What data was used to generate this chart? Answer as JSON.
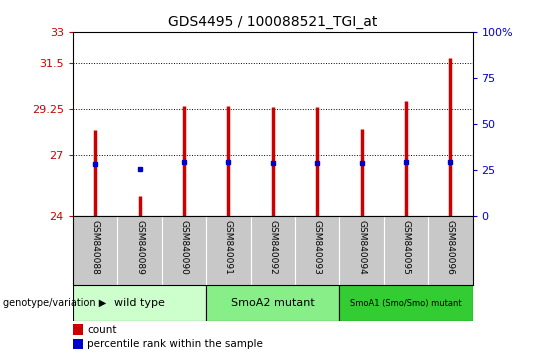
{
  "title": "GDS4495 / 100088521_TGI_at",
  "samples": [
    "GSM840088",
    "GSM840089",
    "GSM840090",
    "GSM840091",
    "GSM840092",
    "GSM840093",
    "GSM840094",
    "GSM840095",
    "GSM840096"
  ],
  "counts": [
    28.2,
    25.0,
    29.4,
    29.4,
    29.35,
    29.35,
    28.25,
    29.6,
    31.7
  ],
  "percentile_ranks": [
    26.55,
    26.3,
    26.65,
    26.65,
    26.6,
    26.6,
    26.6,
    26.65,
    26.65
  ],
  "y_min": 24,
  "y_max": 33,
  "y_ticks": [
    24,
    27,
    29.25,
    31.5,
    33
  ],
  "y_tick_labels": [
    "24",
    "27",
    "29.25",
    "31.5",
    "33"
  ],
  "right_y_ticks": [
    0,
    25,
    50,
    75,
    100
  ],
  "right_y_tick_labels": [
    "0",
    "25",
    "50",
    "75",
    "100%"
  ],
  "bar_color": "#CC0000",
  "dot_color": "#0000CC",
  "bar_base": 24,
  "groups": [
    {
      "label": "wild type",
      "start": 0,
      "end": 3,
      "color": "#CCFFCC"
    },
    {
      "label": "SmoA2 mutant",
      "start": 3,
      "end": 6,
      "color": "#88EE88"
    },
    {
      "label": "SmoA1 (Smo/Smo) mutant",
      "start": 6,
      "end": 9,
      "color": "#33CC33"
    }
  ],
  "ylabel_left_color": "#CC0000",
  "ylabel_right_color": "#0000CC",
  "legend_count_color": "#CC0000",
  "legend_pct_color": "#0000CC",
  "genotype_label": "genotype/variation",
  "background_color": "#FFFFFF",
  "plot_bg_color": "#FFFFFF",
  "tick_label_area_bg": "#C8C8C8"
}
